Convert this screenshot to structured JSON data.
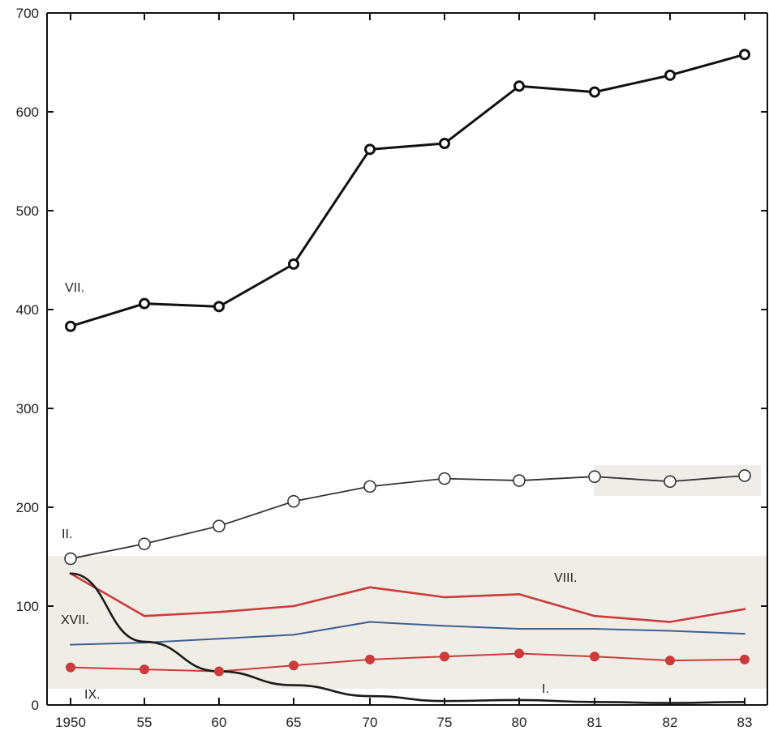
{
  "chart_data": {
    "type": "line",
    "title": "",
    "xlabel": "",
    "ylabel": "",
    "categories": [
      "1950",
      "55",
      "60",
      "65",
      "70",
      "75",
      "80",
      "81",
      "82",
      "83"
    ],
    "ylim": [
      0,
      700
    ],
    "yticks": [
      0,
      100,
      200,
      300,
      400,
      500,
      600,
      700
    ],
    "grid": false,
    "legend": "inline labels",
    "series": [
      {
        "name": "VII.",
        "color": "#111111",
        "marker": "open-circle",
        "values": [
          383,
          406,
          403,
          446,
          562,
          568,
          626,
          620,
          637,
          658
        ]
      },
      {
        "name": "II.",
        "color": "#333333",
        "marker": "open-circle",
        "values": [
          148,
          163,
          181,
          206,
          221,
          229,
          227,
          231,
          226,
          232
        ]
      },
      {
        "name": "VIII.",
        "color": "#cc3b3b",
        "marker": "none",
        "values": [
          133,
          90,
          94,
          100,
          119,
          109,
          112,
          90,
          84,
          97
        ]
      },
      {
        "name": "XVII.",
        "color": "#3f5f8f",
        "marker": "none",
        "values": [
          61,
          63,
          67,
          71,
          84,
          80,
          77,
          77,
          75,
          72
        ]
      },
      {
        "name": "IX.",
        "color": "#cc3b3b",
        "marker": "filled-circle",
        "values": [
          38,
          36,
          34,
          40,
          46,
          49,
          52,
          49,
          45,
          46
        ]
      },
      {
        "name": "I.",
        "color": "#1a1a1a",
        "marker": "none",
        "values": [
          133,
          64,
          34,
          20,
          9,
          4,
          5,
          3,
          2,
          3
        ]
      }
    ]
  }
}
